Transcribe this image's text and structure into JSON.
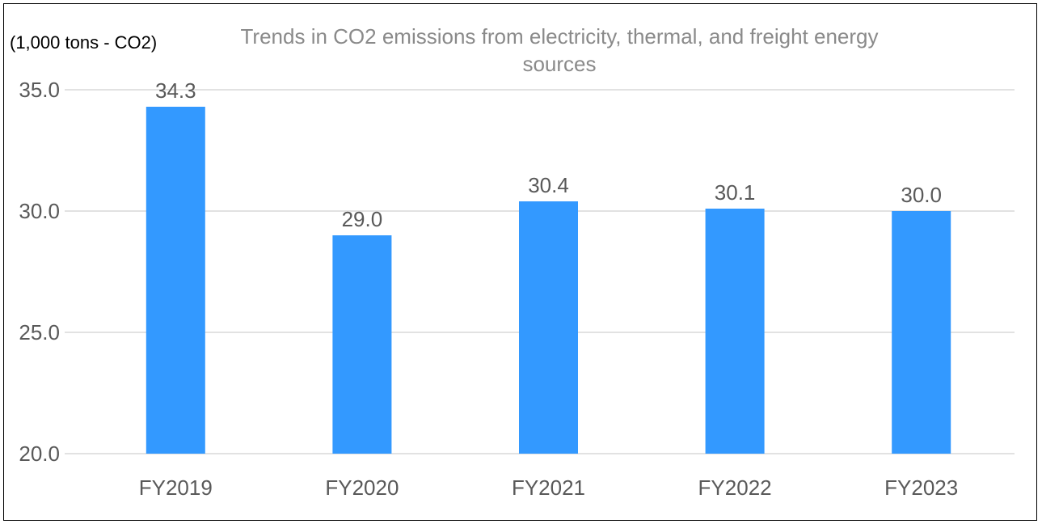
{
  "chart_data": {
    "type": "bar",
    "title": "Trends in CO2 emissions from electricity, thermal, and freight energy sources",
    "ylabel": "(1,000 tons - CO2)",
    "xlabel": "",
    "categories": [
      "FY2019",
      "FY2020",
      "FY2021",
      "FY2022",
      "FY2023"
    ],
    "values": [
      34.3,
      29.0,
      30.4,
      30.1,
      30.0
    ],
    "value_labels": [
      "34.3",
      "29.0",
      "30.4",
      "30.1",
      "30.0"
    ],
    "ylim": [
      20,
      35
    ],
    "yticks": [
      20,
      25,
      30,
      35
    ],
    "ytick_labels": [
      "20.0",
      "25.0",
      "30.0",
      "35.0"
    ],
    "grid": true,
    "legend": "none",
    "bar_color": "#3399ff"
  }
}
